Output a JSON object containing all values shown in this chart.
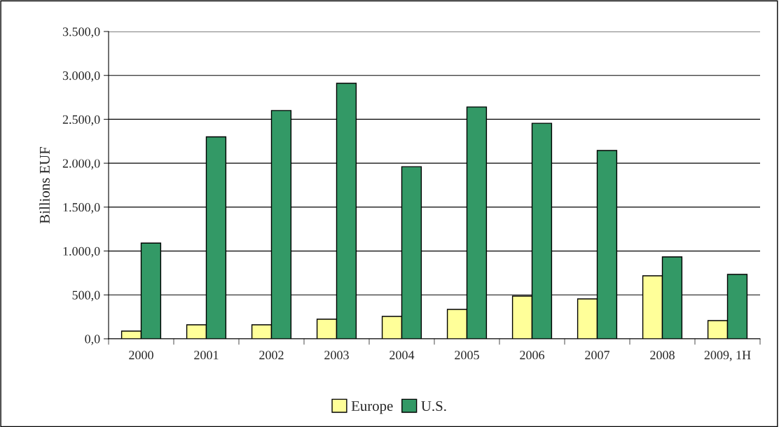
{
  "chart_data": {
    "type": "bar",
    "ylabel": "Billions EUF",
    "categories": [
      "2000",
      "2001",
      "2002",
      "2003",
      "2004",
      "2005",
      "2006",
      "2007",
      "2008",
      "2009, 1H"
    ],
    "series": [
      {
        "name": "Europe",
        "color": "#ffff99",
        "values": [
          88,
          160,
          160,
          223,
          255,
          335,
          486,
          454,
          718,
          207
        ]
      },
      {
        "name": "U.S.",
        "color": "#339966",
        "values": [
          1090,
          2300,
          2600,
          2910,
          1960,
          2640,
          2455,
          2145,
          933,
          733
        ]
      }
    ],
    "ylim": [
      0,
      3500
    ],
    "yticks": [
      {
        "value": 0,
        "label": "0,0"
      },
      {
        "value": 500,
        "label": "500,0"
      },
      {
        "value": 1000,
        "label": "1.000,0"
      },
      {
        "value": 1500,
        "label": "1.500,0"
      },
      {
        "value": 2000,
        "label": "2.000,0"
      },
      {
        "value": 2500,
        "label": "2.500,0"
      },
      {
        "value": 3000,
        "label": "3.000,0"
      },
      {
        "value": 3500,
        "label": "3.500,0"
      }
    ],
    "grid": "y",
    "legend": "bottom"
  }
}
